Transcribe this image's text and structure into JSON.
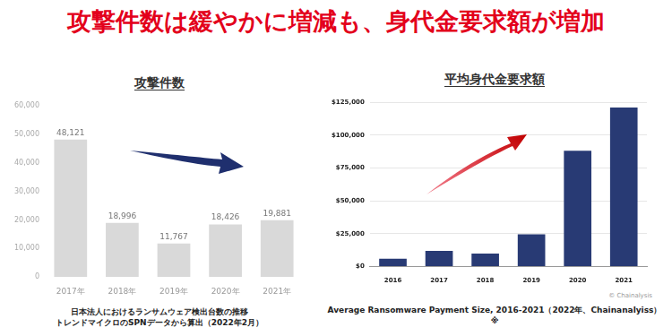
{
  "title": "攻撃件数は緩やかに増減も、身代金要求額が増加",
  "chart_data": [
    {
      "type": "bar",
      "title": "攻撃件数",
      "categories": [
        "2017年",
        "2018年",
        "2019年",
        "2020年",
        "2021年"
      ],
      "values": [
        48121,
        18996,
        11767,
        18426,
        19881
      ],
      "value_labels": [
        "48,121",
        "18,996",
        "11,767",
        "18,426",
        "19,881"
      ],
      "data_labels": true,
      "color": "#d9d9d9",
      "ylim": [
        0,
        60000
      ],
      "yticks": [
        0,
        {
          "value": 10000,
          "label": "10,000"
        },
        {
          "value": 20000,
          "label": "20,000"
        },
        {
          "value": 30000,
          "label": "30,000"
        },
        {
          "value": 40000,
          "label": "40,000"
        },
        {
          "value": 50000,
          "label": "50,000"
        },
        {
          "value": 60000,
          "label": "60,000"
        }
      ],
      "grid": false,
      "caption": [
        "日本法人におけるランサムウェア検出台数の推移",
        "トレンドマイクロのSPNデータから算出（2022年2月）"
      ]
    },
    {
      "type": "bar",
      "title": "平均身代金要求額",
      "categories": [
        "2016",
        "2017",
        "2018",
        "2019",
        "2020",
        "2021"
      ],
      "values": [
        6000,
        12000,
        10000,
        24500,
        88000,
        121000
      ],
      "data_labels": false,
      "color": "#283a74",
      "ylim": [
        0,
        125000
      ],
      "yticks": [
        {
          "value": 0,
          "label": "$0"
        },
        {
          "value": 25000,
          "label": "$25,000"
        },
        {
          "value": 50000,
          "label": "$50,000"
        },
        {
          "value": 75000,
          "label": "$75,000"
        },
        {
          "value": 100000,
          "label": "$100,000"
        },
        {
          "value": 125000,
          "label": "$125,000"
        }
      ],
      "grid": true,
      "caption": [
        "Average Ransomware Payment Size, 2016-2021（2022年、Chainanalyiss）※"
      ],
      "credit": "© Chainalysis"
    }
  ]
}
